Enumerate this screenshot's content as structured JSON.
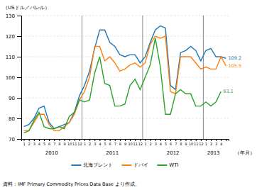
{
  "chart_data": {
    "type": "line",
    "y_label": "（USドル／バレル）",
    "x_label": "（年月）",
    "source": "資料：IMF Primary Commodity Prices Data Base より作成。",
    "categories": [
      "1",
      "2",
      "3",
      "4",
      "5",
      "6",
      "7",
      "8",
      "9",
      "10",
      "11",
      "12",
      "1",
      "2",
      "3",
      "4",
      "5",
      "6",
      "7",
      "8",
      "9",
      "10",
      "11",
      "12",
      "1",
      "2",
      "3",
      "4",
      "5",
      "6",
      "7",
      "8",
      "9",
      "10",
      "11",
      "12",
      "1",
      "2",
      "3",
      "4",
      null
    ],
    "x_groups": [
      "2010",
      "2011",
      "2012",
      "2013"
    ],
    "series": [
      {
        "name": "北海ブレント",
        "end_label": "109.2",
        "values": [
          76,
          77,
          80,
          85,
          86,
          78,
          75,
          76,
          77,
          78,
          83,
          91,
          96,
          103,
          114,
          123,
          123,
          117,
          115,
          111,
          110,
          111,
          111,
          107,
          110,
          117,
          123,
          125,
          124,
          96,
          94,
          112,
          113,
          115,
          113,
          108,
          113,
          114,
          110,
          110,
          109.2
        ]
      },
      {
        "name": "ドバイ",
        "end_label": "105.5",
        "values": [
          74,
          74,
          78,
          82,
          82,
          77,
          74,
          74,
          76,
          78,
          82,
          89,
          93,
          100,
          115,
          115,
          108,
          110,
          107,
          103,
          104,
          106,
          107,
          105,
          107,
          116,
          120,
          119,
          120,
          93,
          92,
          110,
          110,
          110,
          107,
          104,
          105,
          104,
          104,
          110,
          105.5
        ]
      },
      {
        "name": "WTI",
        "end_label": "93.1",
        "values": [
          73,
          74,
          79,
          83,
          76,
          75,
          75,
          76,
          75,
          81,
          83,
          89,
          88,
          89,
          102,
          110,
          97,
          96,
          86,
          86,
          87,
          96,
          99,
          94,
          100,
          106,
          119,
          105,
          82,
          82,
          92,
          94,
          92,
          92,
          86,
          86,
          88,
          86,
          88,
          93.1,
          null
        ]
      }
    ],
    "ylim": [
      70,
      130
    ],
    "yticks": [
      70,
      80,
      90,
      100,
      110,
      120,
      130
    ],
    "grid": true,
    "legend": "bottom"
  }
}
